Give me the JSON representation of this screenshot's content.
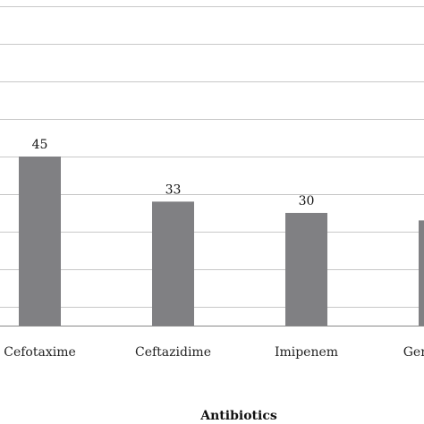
{
  "chart_data": {
    "type": "bar",
    "categories": [
      "Cefotaxime",
      "Ceftazidime",
      "Imipenem",
      "Gentamicin"
    ],
    "values": [
      45,
      33,
      30,
      28
    ],
    "data_labels": [
      "45",
      "33",
      "30",
      ""
    ],
    "xlabel": "Antibiotics",
    "ylabel": "",
    "ylim": [
      0,
      85
    ],
    "grid": true,
    "gridline_values": [
      5,
      15,
      25,
      35,
      45,
      55,
      65,
      75,
      85
    ],
    "colors": {
      "bar": "#808083",
      "grid": "#c8c8c8",
      "axis": "#888888"
    }
  }
}
